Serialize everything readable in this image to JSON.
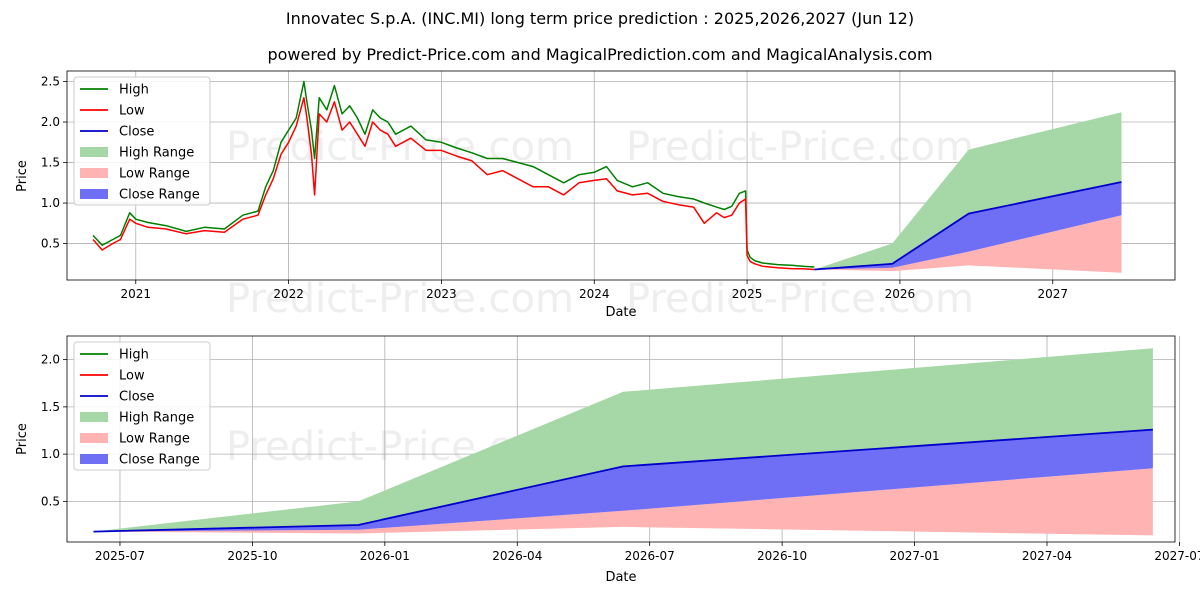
{
  "title": "Innovatec S.p.A. (INC.MI) long term price prediction : 2025,2026,2027 (Jun 12)",
  "subtitle": "powered by Predict-Price.com and MagicalPrediction.com and MagicalAnalysis.com",
  "watermark": "Predict-Price.com",
  "colors": {
    "high": "#008000",
    "low": "#ff0000",
    "close": "#0000cc",
    "high_range": "#a6d7a6",
    "low_range": "#ffb3b3",
    "close_range": "#6f6ff5"
  },
  "chart_data": [
    {
      "type": "line",
      "name": "history-and-forecast",
      "xlabel": "Date",
      "ylabel": "Price",
      "xlim": [
        2020.55,
        2027.8
      ],
      "ylim": [
        0.05,
        2.63
      ],
      "x_ticks": [
        {
          "label": "2021",
          "value": 2021.0
        },
        {
          "label": "2022",
          "value": 2022.0
        },
        {
          "label": "2023",
          "value": 2023.0
        },
        {
          "label": "2024",
          "value": 2024.0
        },
        {
          "label": "2025",
          "value": 2025.0
        },
        {
          "label": "2026",
          "value": 2026.0
        },
        {
          "label": "2027",
          "value": 2027.0
        }
      ],
      "y_ticks": [
        0.5,
        1.0,
        1.5,
        2.0,
        2.5
      ],
      "y_tick_labels": [
        "0.5",
        "1.0",
        "1.5",
        "2.0",
        "2.5"
      ],
      "grid": true,
      "legend": {
        "position": "upper-left",
        "labels": [
          "High",
          "Low",
          "Close",
          "High Range",
          "Low Range",
          "Close Range"
        ]
      },
      "history": {
        "x": [
          2020.72,
          2020.78,
          2020.85,
          2020.9,
          2020.96,
          2021.0,
          2021.08,
          2021.2,
          2021.33,
          2021.45,
          2021.58,
          2021.7,
          2021.8,
          2021.85,
          2021.9,
          2021.95,
          2022.0,
          2022.05,
          2022.1,
          2022.12,
          2022.15,
          2022.17,
          2022.2,
          2022.25,
          2022.3,
          2022.35,
          2022.4,
          2022.45,
          2022.5,
          2022.55,
          2022.6,
          2022.65,
          2022.7,
          2022.8,
          2022.9,
          2023.0,
          2023.1,
          2023.2,
          2023.3,
          2023.4,
          2023.5,
          2023.6,
          2023.7,
          2023.8,
          2023.9,
          2024.0,
          2024.08,
          2024.15,
          2024.25,
          2024.35,
          2024.45,
          2024.55,
          2024.65,
          2024.72,
          2024.8,
          2024.85,
          2024.9,
          2024.95,
          2024.99,
          2025.0,
          2025.02,
          2025.05,
          2025.1,
          2025.2,
          2025.3,
          2025.36,
          2025.44
        ],
        "high": [
          0.6,
          0.48,
          0.55,
          0.6,
          0.88,
          0.8,
          0.76,
          0.72,
          0.65,
          0.7,
          0.68,
          0.85,
          0.9,
          1.2,
          1.4,
          1.75,
          1.9,
          2.05,
          2.5,
          2.25,
          1.9,
          1.55,
          2.3,
          2.15,
          2.45,
          2.1,
          2.2,
          2.05,
          1.85,
          2.15,
          2.05,
          2.0,
          1.85,
          1.95,
          1.78,
          1.75,
          1.68,
          1.62,
          1.55,
          1.55,
          1.5,
          1.45,
          1.35,
          1.25,
          1.35,
          1.38,
          1.45,
          1.28,
          1.2,
          1.25,
          1.12,
          1.08,
          1.05,
          1.0,
          0.95,
          0.92,
          0.96,
          1.12,
          1.15,
          0.42,
          0.33,
          0.29,
          0.26,
          0.24,
          0.23,
          0.22,
          0.21
        ],
        "low": [
          0.55,
          0.42,
          0.5,
          0.55,
          0.8,
          0.75,
          0.7,
          0.68,
          0.62,
          0.66,
          0.64,
          0.8,
          0.85,
          1.1,
          1.3,
          1.6,
          1.75,
          1.95,
          2.3,
          2.05,
          1.6,
          1.1,
          2.1,
          2.0,
          2.25,
          1.9,
          2.0,
          1.85,
          1.7,
          2.0,
          1.9,
          1.85,
          1.7,
          1.8,
          1.65,
          1.65,
          1.58,
          1.52,
          1.35,
          1.4,
          1.3,
          1.2,
          1.2,
          1.1,
          1.25,
          1.28,
          1.3,
          1.15,
          1.1,
          1.12,
          1.02,
          0.98,
          0.95,
          0.75,
          0.88,
          0.82,
          0.85,
          1.0,
          1.05,
          0.35,
          0.28,
          0.25,
          0.22,
          0.2,
          0.19,
          0.19,
          0.18
        ]
      },
      "forecast": {
        "x": [
          2025.44,
          2025.95,
          2026.45,
          2027.45
        ],
        "close": [
          0.18,
          0.25,
          0.87,
          1.26
        ],
        "high_range_upper": [
          0.18,
          0.5,
          1.66,
          2.12
        ],
        "close_range_upper": [
          0.18,
          0.25,
          0.87,
          1.26
        ],
        "close_range_lower": [
          0.18,
          0.2,
          0.4,
          0.85
        ],
        "low_range_upper": [
          0.18,
          0.2,
          0.4,
          0.85
        ],
        "low_range_lower": [
          0.18,
          0.16,
          0.23,
          0.14
        ]
      }
    },
    {
      "type": "area",
      "name": "forecast-zoom",
      "xlabel": "Date",
      "ylabel": "Price",
      "xlim": [
        -0.2,
        24.9
      ],
      "ylim": [
        0.07,
        2.25
      ],
      "x_ticks": [
        {
          "label": "2025-07",
          "value": 1.0
        },
        {
          "label": "2025-10",
          "value": 4.0
        },
        {
          "label": "2026-01",
          "value": 7.0
        },
        {
          "label": "2026-04",
          "value": 10.0
        },
        {
          "label": "2026-07",
          "value": 13.0
        },
        {
          "label": "2026-10",
          "value": 16.0
        },
        {
          "label": "2027-01",
          "value": 19.0
        },
        {
          "label": "2027-04",
          "value": 22.0
        },
        {
          "label": "2027-07",
          "value": 25.0
        }
      ],
      "y_ticks": [
        0.5,
        1.0,
        1.5,
        2.0
      ],
      "y_tick_labels": [
        "0.5",
        "1.0",
        "1.5",
        "2.0"
      ],
      "grid": true,
      "legend": {
        "position": "upper-left",
        "labels": [
          "High",
          "Low",
          "Close",
          "High Range",
          "Low Range",
          "Close Range"
        ]
      },
      "forecast": {
        "x": [
          0.4,
          6.4,
          12.4,
          24.4
        ],
        "close": [
          0.18,
          0.25,
          0.87,
          1.26
        ],
        "high_range_upper": [
          0.18,
          0.5,
          1.66,
          2.12
        ],
        "close_range_upper": [
          0.18,
          0.25,
          0.87,
          1.26
        ],
        "close_range_lower": [
          0.18,
          0.2,
          0.4,
          0.85
        ],
        "low_range_upper": [
          0.18,
          0.2,
          0.4,
          0.85
        ],
        "low_range_lower": [
          0.18,
          0.16,
          0.23,
          0.14
        ]
      }
    }
  ]
}
